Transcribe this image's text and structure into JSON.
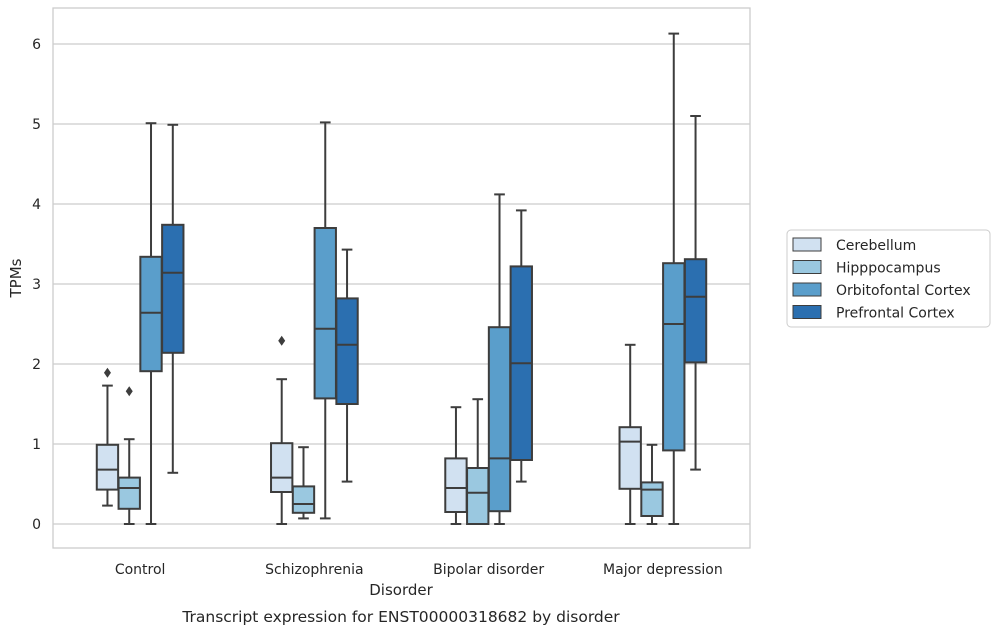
{
  "chart_data": {
    "type": "boxplot",
    "xlabel": "Disorder",
    "ylabel": "TPMs",
    "caption": "Transcript expression for ENST00000318682 by disorder",
    "ylim": [
      -0.3,
      6.45
    ],
    "yticks": [
      0,
      1,
      2,
      3,
      4,
      5,
      6
    ],
    "grid": "horizontal",
    "legend_position": "right",
    "categories": [
      "Control",
      "Schizophrenia",
      "Bipolar disorder",
      "Major depression"
    ],
    "series": [
      {
        "name": "Cerebellum",
        "color": "#d1e1f1",
        "boxes": [
          {
            "whisker_low": 0.23,
            "q1": 0.43,
            "median": 0.68,
            "q3": 0.99,
            "whisker_high": 1.73,
            "outliers": [
              1.89
            ]
          },
          {
            "whisker_low": 0.0,
            "q1": 0.4,
            "median": 0.58,
            "q3": 1.01,
            "whisker_high": 1.81,
            "outliers": [
              2.29
            ]
          },
          {
            "whisker_low": 0.0,
            "q1": 0.15,
            "median": 0.45,
            "q3": 0.82,
            "whisker_high": 1.46,
            "outliers": []
          },
          {
            "whisker_low": 0.0,
            "q1": 0.44,
            "median": 1.03,
            "q3": 1.21,
            "whisker_high": 2.24,
            "outliers": []
          }
        ]
      },
      {
        "name": "Hipppocampus",
        "color": "#9ac8e0",
        "boxes": [
          {
            "whisker_low": 0.0,
            "q1": 0.19,
            "median": 0.45,
            "q3": 0.58,
            "whisker_high": 1.06,
            "outliers": [
              1.66
            ]
          },
          {
            "whisker_low": 0.07,
            "q1": 0.14,
            "median": 0.25,
            "q3": 0.47,
            "whisker_high": 0.96,
            "outliers": []
          },
          {
            "whisker_low": 0.0,
            "q1": 0.0,
            "median": 0.39,
            "q3": 0.7,
            "whisker_high": 1.56,
            "outliers": []
          },
          {
            "whisker_low": 0.0,
            "q1": 0.1,
            "median": 0.43,
            "q3": 0.52,
            "whisker_high": 0.99,
            "outliers": []
          }
        ]
      },
      {
        "name": "Orbitofontal Cortex",
        "color": "#5a9ecb",
        "boxes": [
          {
            "whisker_low": 0.0,
            "q1": 1.91,
            "median": 2.64,
            "q3": 3.34,
            "whisker_high": 5.01,
            "outliers": []
          },
          {
            "whisker_low": 0.07,
            "q1": 1.57,
            "median": 2.44,
            "q3": 3.7,
            "whisker_high": 5.02,
            "outliers": []
          },
          {
            "whisker_low": 0.0,
            "q1": 0.16,
            "median": 0.82,
            "q3": 2.46,
            "whisker_high": 4.12,
            "outliers": []
          },
          {
            "whisker_low": 0.0,
            "q1": 0.92,
            "median": 2.5,
            "q3": 3.26,
            "whisker_high": 6.13,
            "outliers": []
          }
        ]
      },
      {
        "name": "Prefrontal Cortex",
        "color": "#2b6fb0",
        "boxes": [
          {
            "whisker_low": 0.64,
            "q1": 2.14,
            "median": 3.14,
            "q3": 3.74,
            "whisker_high": 4.99,
            "outliers": []
          },
          {
            "whisker_low": 0.53,
            "q1": 1.5,
            "median": 2.24,
            "q3": 2.82,
            "whisker_high": 3.43,
            "outliers": []
          },
          {
            "whisker_low": 0.53,
            "q1": 0.8,
            "median": 2.01,
            "q3": 3.22,
            "whisker_high": 3.92,
            "outliers": []
          },
          {
            "whisker_low": 0.68,
            "q1": 2.02,
            "median": 2.84,
            "q3": 3.31,
            "whisker_high": 5.1,
            "outliers": []
          }
        ]
      }
    ]
  }
}
